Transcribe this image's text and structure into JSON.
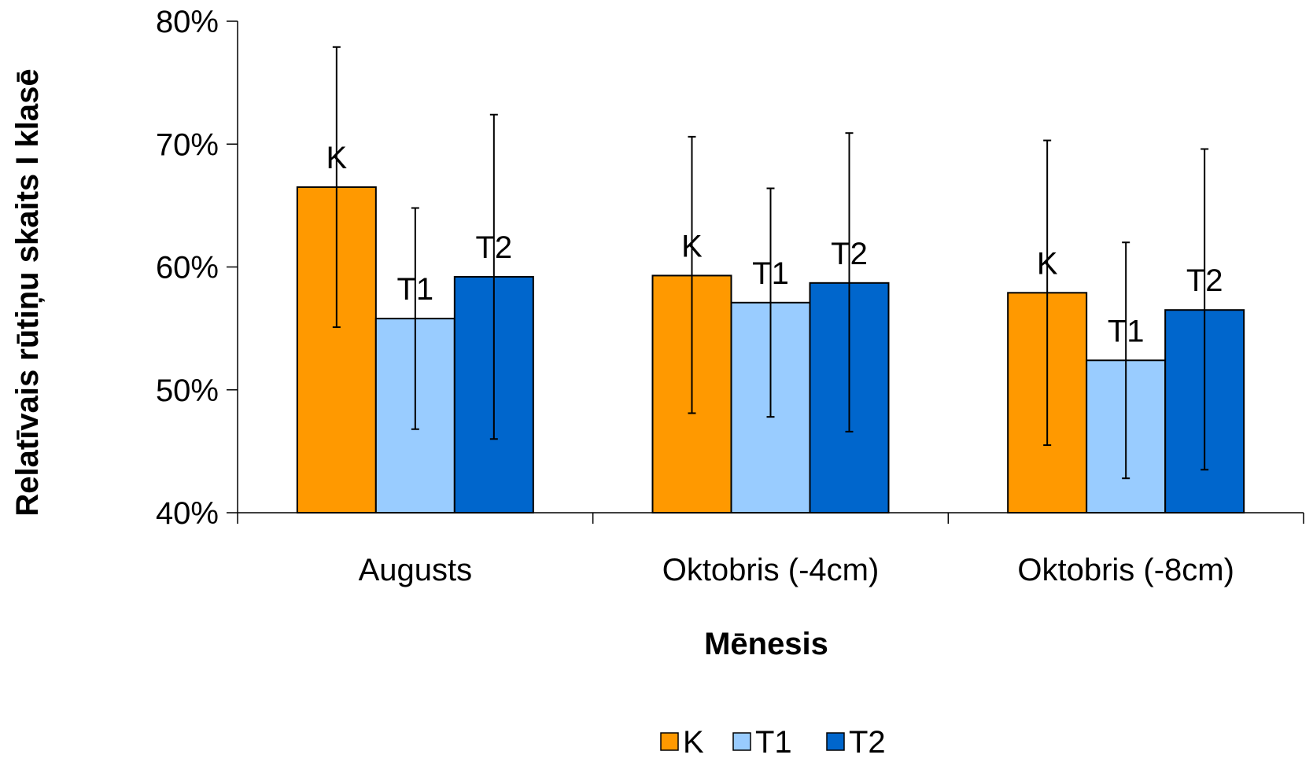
{
  "chart_data": {
    "type": "bar",
    "categories": [
      "Augusts",
      "Oktobris (-4cm)",
      "Oktobris (-8cm)"
    ],
    "series": [
      {
        "name": "K",
        "color": "#FF9900",
        "values": [
          66.5,
          59.3,
          57.9
        ],
        "err_low": [
          55.1,
          48.1,
          45.5
        ],
        "err_high": [
          77.9,
          70.6,
          70.3
        ]
      },
      {
        "name": "T1",
        "color": "#99CCFF",
        "values": [
          55.8,
          57.1,
          52.4
        ],
        "err_low": [
          46.8,
          47.8,
          42.8
        ],
        "err_high": [
          64.8,
          66.4,
          62.0
        ]
      },
      {
        "name": "T2",
        "color": "#0066CC",
        "values": [
          59.2,
          58.7,
          56.5
        ],
        "err_low": [
          46.0,
          46.6,
          43.5
        ],
        "err_high": [
          72.4,
          70.9,
          69.6
        ]
      }
    ],
    "xlabel": "Mēnesis",
    "ylabel": "Relatīvais rūtiņu skaits I klasē",
    "ylim": [
      40,
      80
    ],
    "yticks": [
      "40%",
      "50%",
      "60%",
      "70%",
      "80%"
    ],
    "ytick_values": [
      40,
      50,
      60,
      70,
      80
    ],
    "grid": false,
    "legend_position": "bottom"
  }
}
